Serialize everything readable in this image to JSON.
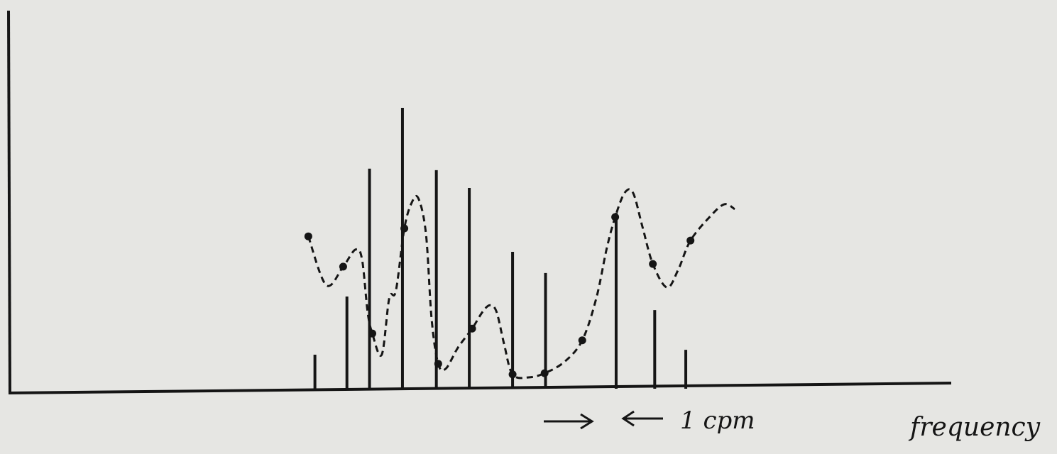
{
  "chart_data": {
    "type": "spectrum",
    "x_label": "frequency",
    "annotation": "1 cpm",
    "xlim": [
      0,
      100
    ],
    "ylim": [
      0,
      100
    ],
    "color": "#151515",
    "series": [
      {
        "type": "bar",
        "color": "#151515",
        "x": [
          32.4,
          35.8,
          38.2,
          41.7,
          45.3,
          48.8,
          53.4,
          56.9,
          64.4,
          68.5,
          71.8
        ],
        "values": [
          9.0,
          24.4,
          58.2,
          74.3,
          57.8,
          53.1,
          36.2,
          30.6,
          46.5,
          20.8,
          10.3
        ]
      },
      {
        "type": "line",
        "color": "#151515",
        "dashed": true,
        "x": [
          31.7,
          33.6,
          35.4,
          36.7,
          37.4,
          38.0,
          38.5,
          39.5,
          40.3,
          41.0,
          41.9,
          42.7,
          43.4,
          44.2,
          44.8,
          45.5,
          46.3,
          47.6,
          49.1,
          50.2,
          51.0,
          51.7,
          52.5,
          53.4,
          55.1,
          56.8,
          58.9,
          60.8,
          62.3,
          63.4,
          64.3,
          65.3,
          66.2,
          67.2,
          68.3,
          69.8,
          71.0,
          72.3,
          74.4,
          75.9,
          77.0
        ],
        "values": [
          40.3,
          27.4,
          32.3,
          36.8,
          34.3,
          20.3,
          14.6,
          9.0,
          24.0,
          25.9,
          42.4,
          49.3,
          50.3,
          40.9,
          18.4,
          6.6,
          5.3,
          10.9,
          15.9,
          20.3,
          22.1,
          20.3,
          11.8,
          3.8,
          3.0,
          4.1,
          7.1,
          12.8,
          24.0,
          37.1,
          45.4,
          51.8,
          51.8,
          42.8,
          33.0,
          26.8,
          31.5,
          39.2,
          45.6,
          48.8,
          47.5
        ]
      },
      {
        "type": "scatter",
        "color": "#151515",
        "x": [
          31.7,
          35.4,
          38.5,
          41.9,
          45.5,
          49.1,
          53.4,
          56.8,
          60.8,
          64.3,
          68.3,
          72.3
        ],
        "values": [
          40.3,
          32.3,
          14.6,
          42.4,
          6.6,
          15.9,
          3.8,
          4.1,
          12.8,
          45.4,
          33.0,
          39.2
        ]
      }
    ]
  }
}
